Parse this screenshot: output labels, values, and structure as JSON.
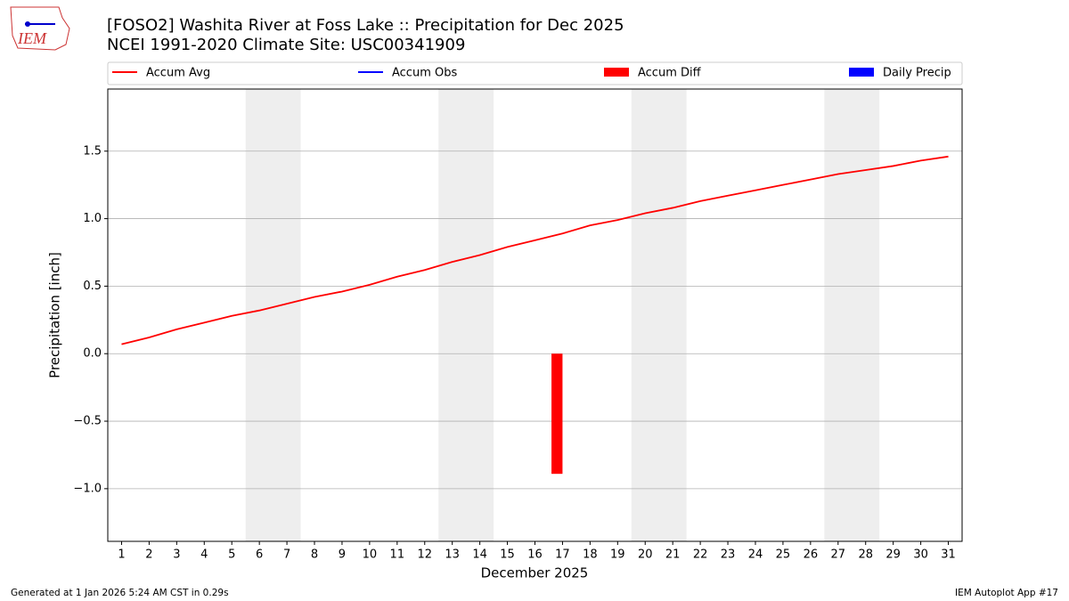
{
  "logo_text": "IEM",
  "footer_left": "Generated at 1 Jan 2026 5:24 AM CST in 0.29s",
  "footer_right": "IEM Autoplot App #17",
  "chart_data": {
    "type": "line",
    "title": "[FOSO2] Washita River at Foss Lake :: Precipitation for Dec 2025",
    "subtitle": "NCEI 1991-2020 Climate Site: USC00341909",
    "xlabel": "December 2025",
    "ylabel": "Precipitation [inch]",
    "x": [
      1,
      2,
      3,
      4,
      5,
      6,
      7,
      8,
      9,
      10,
      11,
      12,
      13,
      14,
      15,
      16,
      17,
      18,
      19,
      20,
      21,
      22,
      23,
      24,
      25,
      26,
      27,
      28,
      29,
      30,
      31
    ],
    "xlim": [
      0.5,
      31.5
    ],
    "xticks": [
      1,
      2,
      3,
      4,
      5,
      6,
      7,
      8,
      9,
      10,
      11,
      12,
      13,
      14,
      15,
      16,
      17,
      18,
      19,
      20,
      21,
      22,
      23,
      24,
      25,
      26,
      27,
      28,
      29,
      30,
      31
    ],
    "ylim": [
      -1.39,
      1.96
    ],
    "yticks": [
      {
        "value": -1,
        "label": "−1.0"
      },
      {
        "value": -0.5,
        "label": "−0.5"
      },
      {
        "value": 0,
        "label": "0.0"
      },
      0.5,
      {
        "value": 1,
        "label": "1.0"
      },
      1.5
    ],
    "grid": true,
    "shaded_spans": [
      [
        5.5,
        7.5
      ],
      [
        12.5,
        14.5
      ],
      [
        19.5,
        21.5
      ],
      [
        26.5,
        28.5
      ]
    ],
    "shade_color": "#eeeeee",
    "series": [
      {
        "name": "Accum Avg",
        "kind": "line",
        "color": "#ff0000",
        "values": [
          0.07,
          0.12,
          0.18,
          0.23,
          0.28,
          0.32,
          0.37,
          0.42,
          0.46,
          0.51,
          0.57,
          0.62,
          0.68,
          0.73,
          0.79,
          0.84,
          0.89,
          0.95,
          0.99,
          1.04,
          1.08,
          1.13,
          1.17,
          1.21,
          1.25,
          1.29,
          1.33,
          1.36,
          1.39,
          1.43,
          1.46
        ]
      },
      {
        "name": "Accum Obs",
        "kind": "line",
        "color": "#0000ff",
        "values": [
          null,
          null,
          null,
          null,
          null,
          null,
          null,
          null,
          null,
          null,
          null,
          null,
          null,
          null,
          null,
          null,
          null,
          null,
          null,
          null,
          null,
          null,
          null,
          null,
          null,
          null,
          null,
          null,
          null,
          null,
          null
        ]
      },
      {
        "name": "Accum Diff",
        "kind": "bar",
        "color": "#ff0000",
        "values": [
          null,
          null,
          null,
          null,
          null,
          null,
          null,
          null,
          null,
          null,
          null,
          null,
          null,
          null,
          null,
          null,
          -0.89,
          null,
          null,
          null,
          null,
          null,
          null,
          null,
          null,
          null,
          null,
          null,
          null,
          null,
          null
        ]
      },
      {
        "name": "Daily Precip",
        "kind": "bar",
        "color": "#0000ff",
        "values": [
          null,
          null,
          null,
          null,
          null,
          null,
          null,
          null,
          null,
          null,
          null,
          null,
          null,
          null,
          null,
          null,
          null,
          null,
          null,
          null,
          null,
          null,
          null,
          null,
          null,
          null,
          null,
          null,
          null,
          null,
          null
        ]
      }
    ]
  }
}
